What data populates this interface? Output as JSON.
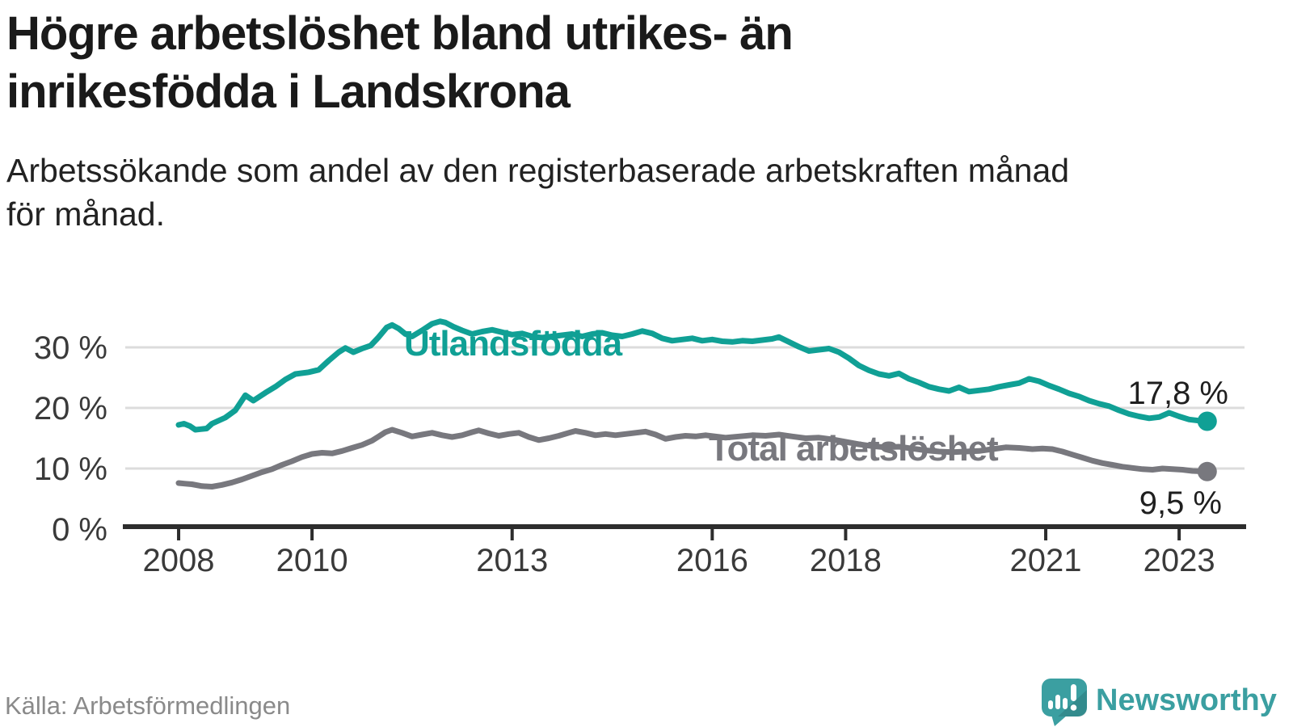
{
  "header": {
    "title": "Högre arbetslöshet bland utrikes- än\ninrikesfödda i Landskrona",
    "subtitle": "Arbetssökande som andel av den registerbaserade arbetskraften månad\nför månad."
  },
  "footer": {
    "source": "Källa: Arbetsförmedlingen",
    "logo_text": "Newsworthy"
  },
  "colors": {
    "accent_teal": "#10a095",
    "line_gray": "#78787e",
    "grid": "#dcdcdc",
    "axis": "#2d2d2d",
    "tick_text": "#3a3a3a",
    "logo_teal": "#3b9fa1"
  },
  "chart_data": {
    "type": "line",
    "x_ticks": [
      2008,
      2010,
      2013,
      2016,
      2018,
      2021,
      2023
    ],
    "y_ticks": [
      0,
      10,
      20,
      30
    ],
    "y_tick_labels": [
      "0 %",
      "10 %",
      "20 %",
      "30 %"
    ],
    "xlim": [
      2007.2,
      2023.98
    ],
    "ylim": [
      0,
      35
    ],
    "grid": true,
    "legend_position": "inline-labels",
    "series": [
      {
        "name": "Utlandsfödda",
        "color": "#10a095",
        "end_label": "17,8 %",
        "end_value": 17.8,
        "points": [
          [
            2008.0,
            17.2
          ],
          [
            2008.08,
            17.4
          ],
          [
            2008.17,
            17.0
          ],
          [
            2008.25,
            16.4
          ],
          [
            2008.33,
            16.5
          ],
          [
            2008.42,
            16.6
          ],
          [
            2008.5,
            17.4
          ],
          [
            2008.58,
            17.8
          ],
          [
            2008.7,
            18.4
          ],
          [
            2008.85,
            19.6
          ],
          [
            2009.0,
            22.1
          ],
          [
            2009.12,
            21.2
          ],
          [
            2009.3,
            22.5
          ],
          [
            2009.45,
            23.5
          ],
          [
            2009.6,
            24.7
          ],
          [
            2009.75,
            25.6
          ],
          [
            2009.95,
            25.9
          ],
          [
            2010.1,
            26.3
          ],
          [
            2010.25,
            27.8
          ],
          [
            2010.4,
            29.2
          ],
          [
            2010.5,
            29.9
          ],
          [
            2010.62,
            29.2
          ],
          [
            2010.75,
            29.8
          ],
          [
            2010.88,
            30.3
          ],
          [
            2011.0,
            31.7
          ],
          [
            2011.12,
            33.3
          ],
          [
            2011.2,
            33.7
          ],
          [
            2011.3,
            33.1
          ],
          [
            2011.4,
            32.2
          ],
          [
            2011.5,
            31.8
          ],
          [
            2011.65,
            32.8
          ],
          [
            2011.8,
            33.9
          ],
          [
            2011.92,
            34.3
          ],
          [
            2012.0,
            34.1
          ],
          [
            2012.12,
            33.4
          ],
          [
            2012.25,
            32.8
          ],
          [
            2012.4,
            32.2
          ],
          [
            2012.55,
            32.6
          ],
          [
            2012.7,
            32.9
          ],
          [
            2012.85,
            32.5
          ],
          [
            2013.0,
            32.1
          ],
          [
            2013.15,
            32.3
          ],
          [
            2013.3,
            31.8
          ],
          [
            2013.45,
            31.6
          ],
          [
            2013.6,
            31.8
          ],
          [
            2013.75,
            32.0
          ],
          [
            2013.9,
            32.2
          ],
          [
            2014.05,
            31.8
          ],
          [
            2014.2,
            32.2
          ],
          [
            2014.35,
            32.4
          ],
          [
            2014.5,
            32.0
          ],
          [
            2014.65,
            31.8
          ],
          [
            2014.8,
            32.2
          ],
          [
            2014.95,
            32.7
          ],
          [
            2015.1,
            32.3
          ],
          [
            2015.25,
            31.5
          ],
          [
            2015.4,
            31.1
          ],
          [
            2015.55,
            31.3
          ],
          [
            2015.7,
            31.5
          ],
          [
            2015.85,
            31.1
          ],
          [
            2016.0,
            31.3
          ],
          [
            2016.15,
            31.0
          ],
          [
            2016.3,
            30.9
          ],
          [
            2016.45,
            31.1
          ],
          [
            2016.6,
            31.0
          ],
          [
            2016.75,
            31.2
          ],
          [
            2016.9,
            31.4
          ],
          [
            2017.0,
            31.7
          ],
          [
            2017.15,
            30.9
          ],
          [
            2017.3,
            30.1
          ],
          [
            2017.45,
            29.4
          ],
          [
            2017.6,
            29.6
          ],
          [
            2017.75,
            29.8
          ],
          [
            2017.9,
            29.2
          ],
          [
            2018.05,
            28.2
          ],
          [
            2018.2,
            27.0
          ],
          [
            2018.35,
            26.2
          ],
          [
            2018.5,
            25.6
          ],
          [
            2018.65,
            25.3
          ],
          [
            2018.8,
            25.7
          ],
          [
            2018.95,
            24.8
          ],
          [
            2019.1,
            24.2
          ],
          [
            2019.25,
            23.5
          ],
          [
            2019.4,
            23.1
          ],
          [
            2019.55,
            22.8
          ],
          [
            2019.7,
            23.4
          ],
          [
            2019.85,
            22.7
          ],
          [
            2020.0,
            22.9
          ],
          [
            2020.15,
            23.1
          ],
          [
            2020.3,
            23.5
          ],
          [
            2020.45,
            23.8
          ],
          [
            2020.6,
            24.1
          ],
          [
            2020.75,
            24.8
          ],
          [
            2020.9,
            24.4
          ],
          [
            2021.05,
            23.7
          ],
          [
            2021.2,
            23.1
          ],
          [
            2021.35,
            22.4
          ],
          [
            2021.5,
            21.9
          ],
          [
            2021.65,
            21.2
          ],
          [
            2021.8,
            20.7
          ],
          [
            2021.95,
            20.3
          ],
          [
            2022.1,
            19.6
          ],
          [
            2022.25,
            19.0
          ],
          [
            2022.4,
            18.6
          ],
          [
            2022.55,
            18.3
          ],
          [
            2022.7,
            18.5
          ],
          [
            2022.85,
            19.2
          ],
          [
            2023.0,
            18.6
          ],
          [
            2023.15,
            18.1
          ],
          [
            2023.3,
            17.9
          ],
          [
            2023.42,
            17.8
          ]
        ]
      },
      {
        "name": "Total arbetslöshet",
        "color": "#78787e",
        "end_label": "9,5 %",
        "end_value": 9.5,
        "points": [
          [
            2008.0,
            7.6
          ],
          [
            2008.1,
            7.5
          ],
          [
            2008.2,
            7.4
          ],
          [
            2008.35,
            7.1
          ],
          [
            2008.5,
            7.0
          ],
          [
            2008.65,
            7.3
          ],
          [
            2008.8,
            7.7
          ],
          [
            2008.95,
            8.2
          ],
          [
            2009.1,
            8.8
          ],
          [
            2009.25,
            9.4
          ],
          [
            2009.4,
            9.9
          ],
          [
            2009.55,
            10.6
          ],
          [
            2009.7,
            11.2
          ],
          [
            2009.85,
            11.9
          ],
          [
            2010.0,
            12.4
          ],
          [
            2010.15,
            12.6
          ],
          [
            2010.3,
            12.5
          ],
          [
            2010.45,
            12.9
          ],
          [
            2010.6,
            13.4
          ],
          [
            2010.75,
            13.9
          ],
          [
            2010.9,
            14.6
          ],
          [
            2011.0,
            15.3
          ],
          [
            2011.1,
            16.0
          ],
          [
            2011.2,
            16.4
          ],
          [
            2011.35,
            15.9
          ],
          [
            2011.5,
            15.3
          ],
          [
            2011.65,
            15.6
          ],
          [
            2011.8,
            15.9
          ],
          [
            2011.95,
            15.5
          ],
          [
            2012.1,
            15.2
          ],
          [
            2012.25,
            15.5
          ],
          [
            2012.4,
            16.0
          ],
          [
            2012.5,
            16.3
          ],
          [
            2012.65,
            15.8
          ],
          [
            2012.8,
            15.4
          ],
          [
            2012.95,
            15.7
          ],
          [
            2013.1,
            15.9
          ],
          [
            2013.25,
            15.2
          ],
          [
            2013.4,
            14.7
          ],
          [
            2013.55,
            15.0
          ],
          [
            2013.7,
            15.4
          ],
          [
            2013.85,
            15.9
          ],
          [
            2013.95,
            16.2
          ],
          [
            2014.1,
            15.9
          ],
          [
            2014.25,
            15.5
          ],
          [
            2014.4,
            15.7
          ],
          [
            2014.55,
            15.5
          ],
          [
            2014.7,
            15.7
          ],
          [
            2014.85,
            15.9
          ],
          [
            2015.0,
            16.1
          ],
          [
            2015.15,
            15.6
          ],
          [
            2015.3,
            14.9
          ],
          [
            2015.45,
            15.2
          ],
          [
            2015.6,
            15.4
          ],
          [
            2015.75,
            15.3
          ],
          [
            2015.9,
            15.5
          ],
          [
            2016.05,
            15.3
          ],
          [
            2016.2,
            15.1
          ],
          [
            2016.4,
            15.3
          ],
          [
            2016.6,
            15.5
          ],
          [
            2016.8,
            15.4
          ],
          [
            2017.0,
            15.6
          ],
          [
            2017.2,
            15.3
          ],
          [
            2017.4,
            15.0
          ],
          [
            2017.6,
            15.1
          ],
          [
            2017.8,
            14.8
          ],
          [
            2018.0,
            14.4
          ],
          [
            2018.2,
            14.0
          ],
          [
            2018.4,
            13.7
          ],
          [
            2018.6,
            13.5
          ],
          [
            2018.8,
            13.6
          ],
          [
            2019.0,
            13.3
          ],
          [
            2019.2,
            13.0
          ],
          [
            2019.4,
            12.8
          ],
          [
            2019.6,
            12.7
          ],
          [
            2019.8,
            12.8
          ],
          [
            2020.0,
            12.9
          ],
          [
            2020.2,
            13.2
          ],
          [
            2020.4,
            13.5
          ],
          [
            2020.6,
            13.4
          ],
          [
            2020.8,
            13.2
          ],
          [
            2020.95,
            13.3
          ],
          [
            2021.1,
            13.2
          ],
          [
            2021.25,
            12.8
          ],
          [
            2021.4,
            12.3
          ],
          [
            2021.55,
            11.8
          ],
          [
            2021.7,
            11.3
          ],
          [
            2021.85,
            10.9
          ],
          [
            2022.0,
            10.6
          ],
          [
            2022.15,
            10.3
          ],
          [
            2022.3,
            10.1
          ],
          [
            2022.45,
            9.9
          ],
          [
            2022.6,
            9.8
          ],
          [
            2022.75,
            10.0
          ],
          [
            2022.9,
            9.9
          ],
          [
            2023.05,
            9.8
          ],
          [
            2023.2,
            9.6
          ],
          [
            2023.42,
            9.5
          ]
        ]
      }
    ]
  }
}
